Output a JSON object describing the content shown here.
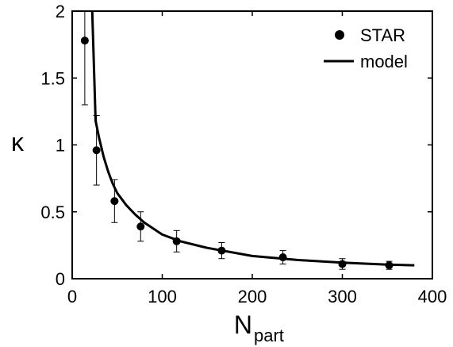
{
  "chart_data": {
    "type": "scatter",
    "title": "",
    "xlabel": "N",
    "xlabel_subscript": "part",
    "ylabel": "κ",
    "xlim": [
      0,
      400
    ],
    "ylim": [
      0,
      2
    ],
    "xticks": [
      0,
      100,
      200,
      300,
      400
    ],
    "yticks": [
      0,
      0.5,
      1,
      1.5,
      2
    ],
    "xtick_labels": [
      "0",
      "100",
      "200",
      "300",
      "400"
    ],
    "ytick_labels": [
      "0",
      "0.5",
      "1",
      "1.5",
      "2"
    ],
    "grid": false,
    "legend_position": "top-right",
    "series": [
      {
        "name": "STAR",
        "type": "scatter",
        "x": [
          14,
          27,
          47,
          76,
          116,
          166,
          234,
          300,
          352
        ],
        "y": [
          1.78,
          0.96,
          0.58,
          0.39,
          0.28,
          0.21,
          0.16,
          0.11,
          0.1
        ],
        "err_low": [
          0.48,
          0.26,
          0.16,
          0.11,
          0.08,
          0.06,
          0.05,
          0.04,
          0.03
        ],
        "err_high": [
          0.45,
          0.26,
          0.16,
          0.11,
          0.08,
          0.06,
          0.05,
          0.04,
          0.03
        ]
      },
      {
        "name": "model",
        "type": "line",
        "x": [
          22,
          26,
          30,
          35,
          40,
          45,
          50,
          60,
          70,
          80,
          100,
          120,
          150,
          200,
          250,
          300,
          350,
          380
        ],
        "y": [
          2.05,
          1.18,
          1.05,
          0.91,
          0.8,
          0.71,
          0.64,
          0.55,
          0.48,
          0.42,
          0.33,
          0.28,
          0.23,
          0.17,
          0.14,
          0.12,
          0.105,
          0.1
        ]
      }
    ]
  }
}
